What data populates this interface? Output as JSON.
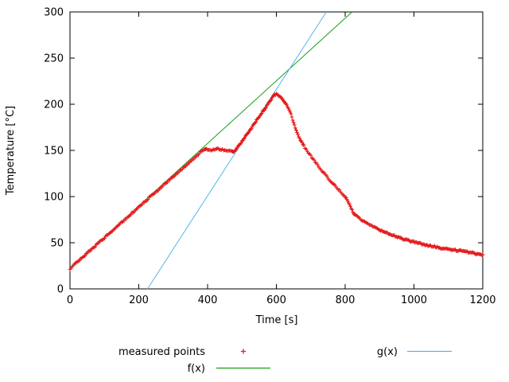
{
  "chart_data": {
    "type": "scatter",
    "title": "",
    "xlabel": "Time [s]",
    "ylabel": "Temperature [°C]",
    "xlim": [
      0,
      1200
    ],
    "ylim": [
      0,
      300
    ],
    "xticks": [
      0,
      200,
      400,
      600,
      800,
      1000,
      1200
    ],
    "yticks": [
      0,
      50,
      100,
      150,
      200,
      250,
      300
    ],
    "grid": false,
    "legend_position": "below",
    "colors": {
      "measured": "#e41a1c",
      "f": "#18a018",
      "g": "#56b4e9",
      "axis": "#000000"
    },
    "series": [
      {
        "name": "measured points",
        "kind": "scatter",
        "marker": "plus",
        "color": "#e41a1c",
        "points": [
          [
            0,
            22
          ],
          [
            10,
            25
          ],
          [
            20,
            29
          ],
          [
            30,
            32
          ],
          [
            40,
            35
          ],
          [
            50,
            39
          ],
          [
            60,
            42
          ],
          [
            70,
            45
          ],
          [
            80,
            49
          ],
          [
            90,
            52
          ],
          [
            100,
            55
          ],
          [
            110,
            59
          ],
          [
            120,
            62
          ],
          [
            130,
            65
          ],
          [
            140,
            69
          ],
          [
            150,
            72
          ],
          [
            160,
            75
          ],
          [
            170,
            79
          ],
          [
            180,
            82
          ],
          [
            190,
            85
          ],
          [
            200,
            89
          ],
          [
            210,
            92
          ],
          [
            220,
            95
          ],
          [
            230,
            99
          ],
          [
            240,
            102
          ],
          [
            250,
            105
          ],
          [
            260,
            108
          ],
          [
            270,
            112
          ],
          [
            280,
            115
          ],
          [
            290,
            118
          ],
          [
            300,
            122
          ],
          [
            310,
            125
          ],
          [
            320,
            128
          ],
          [
            330,
            131
          ],
          [
            340,
            134
          ],
          [
            350,
            138
          ],
          [
            360,
            141
          ],
          [
            370,
            144
          ],
          [
            380,
            148
          ],
          [
            390,
            151
          ],
          [
            395,
            152
          ],
          [
            400,
            151
          ],
          [
            410,
            150
          ],
          [
            420,
            151
          ],
          [
            430,
            152
          ],
          [
            440,
            151
          ],
          [
            450,
            150
          ],
          [
            460,
            150
          ],
          [
            470,
            149
          ],
          [
            475,
            148
          ],
          [
            480,
            150
          ],
          [
            485,
            152
          ],
          [
            490,
            155
          ],
          [
            495,
            157
          ],
          [
            500,
            160
          ],
          [
            505,
            163
          ],
          [
            510,
            165
          ],
          [
            515,
            168
          ],
          [
            520,
            170
          ],
          [
            525,
            173
          ],
          [
            530,
            176
          ],
          [
            535,
            178
          ],
          [
            540,
            181
          ],
          [
            545,
            184
          ],
          [
            550,
            186
          ],
          [
            555,
            189
          ],
          [
            560,
            192
          ],
          [
            565,
            194
          ],
          [
            570,
            197
          ],
          [
            575,
            200
          ],
          [
            580,
            203
          ],
          [
            585,
            205
          ],
          [
            590,
            208
          ],
          [
            595,
            210
          ],
          [
            600,
            211
          ],
          [
            605,
            210
          ],
          [
            610,
            209
          ],
          [
            615,
            207
          ],
          [
            620,
            205
          ],
          [
            625,
            202
          ],
          [
            630,
            199
          ],
          [
            635,
            196
          ],
          [
            640,
            192
          ],
          [
            645,
            186
          ],
          [
            650,
            180
          ],
          [
            655,
            174
          ],
          [
            660,
            169
          ],
          [
            665,
            165
          ],
          [
            670,
            161
          ],
          [
            675,
            158
          ],
          [
            680,
            155
          ],
          [
            690,
            149
          ],
          [
            700,
            144
          ],
          [
            710,
            139
          ],
          [
            720,
            134
          ],
          [
            730,
            129
          ],
          [
            740,
            125
          ],
          [
            750,
            120
          ],
          [
            760,
            116
          ],
          [
            770,
            112
          ],
          [
            780,
            108
          ],
          [
            790,
            104
          ],
          [
            800,
            100
          ],
          [
            805,
            97
          ],
          [
            810,
            93
          ],
          [
            815,
            89
          ],
          [
            820,
            85
          ],
          [
            825,
            82
          ],
          [
            830,
            80
          ],
          [
            840,
            77
          ],
          [
            850,
            74
          ],
          [
            860,
            72
          ],
          [
            870,
            70
          ],
          [
            880,
            68
          ],
          [
            890,
            66
          ],
          [
            900,
            64
          ],
          [
            920,
            61
          ],
          [
            940,
            58
          ],
          [
            960,
            55
          ],
          [
            980,
            53
          ],
          [
            1000,
            51
          ],
          [
            1020,
            49
          ],
          [
            1040,
            47
          ],
          [
            1060,
            46
          ],
          [
            1080,
            44
          ],
          [
            1100,
            43
          ],
          [
            1120,
            42
          ],
          [
            1140,
            41
          ],
          [
            1160,
            40
          ],
          [
            1180,
            38
          ],
          [
            1200,
            37
          ]
        ]
      },
      {
        "name": "f(x)",
        "kind": "linear",
        "slope": 0.339,
        "intercept": 22,
        "color": "#18a018"
      },
      {
        "name": "g(x)",
        "kind": "linear",
        "slope": 0.577,
        "intercept": -130,
        "color": "#56b4e9"
      }
    ],
    "legend": {
      "measured_label": "measured points",
      "f_label": "f(x)",
      "g_label": "g(x)"
    }
  }
}
